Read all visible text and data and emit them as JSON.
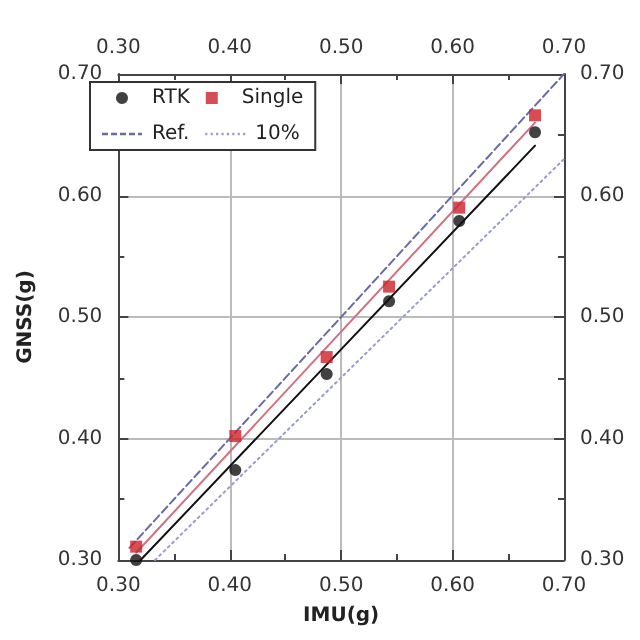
{
  "chart_data": {
    "type": "scatter",
    "xlabel": "IMU(g)",
    "ylabel": "GNSS(g)",
    "xlim": [
      0.3,
      0.7
    ],
    "ylim": [
      0.3,
      0.7
    ],
    "xticks": [
      {
        "value": 0.3,
        "label": "0.30"
      },
      {
        "value": 0.4,
        "label": "0.40"
      },
      {
        "value": 0.5,
        "label": "0.50"
      },
      {
        "value": 0.6,
        "label": "0.60"
      },
      {
        "value": 0.7,
        "label": "0.70"
      }
    ],
    "yticks": [
      {
        "value": 0.3,
        "label": "0.30"
      },
      {
        "value": 0.4,
        "label": "0.40"
      },
      {
        "value": 0.5,
        "label": "0.50"
      },
      {
        "value": 0.6,
        "label": "0.60"
      },
      {
        "value": 0.7,
        "label": "0.70"
      }
    ],
    "x2lim": [
      0.3,
      0.7
    ],
    "y2lim": [
      0.3,
      0.7
    ],
    "x2ticks": [
      {
        "value": 0.3,
        "label": "0.30"
      },
      {
        "value": 0.4,
        "label": "0.40"
      },
      {
        "value": 0.5,
        "label": "0.50"
      },
      {
        "value": 0.6,
        "label": "0.60"
      },
      {
        "value": 0.7,
        "label": "0.70"
      }
    ],
    "y2ticks": [
      {
        "value": 0.3,
        "label": "0.30"
      },
      {
        "value": 0.4,
        "label": "0.40"
      },
      {
        "value": 0.5,
        "label": "0.50"
      },
      {
        "value": 0.6,
        "label": "0.60"
      },
      {
        "value": 0.7,
        "label": "0.70"
      }
    ],
    "grid": true,
    "legend": "top left",
    "series": [
      {
        "name": "RTK",
        "marker": "circle",
        "color": "#111111",
        "x": [
          0.316,
          0.405,
          0.487,
          0.543,
          0.606,
          0.674
        ],
        "values": [
          0.3,
          0.374,
          0.453,
          0.513,
          0.579,
          0.652
        ]
      },
      {
        "name": "Single",
        "marker": "square",
        "color": "#cc2229",
        "x": [
          0.316,
          0.405,
          0.487,
          0.543,
          0.606,
          0.674
        ],
        "values": [
          0.311,
          0.402,
          0.467,
          0.525,
          0.59,
          0.666
        ]
      },
      {
        "name": "Ref.",
        "type": "line",
        "line_style": "dashed",
        "color": "#6a6aa8",
        "x": [
          0.31,
          0.7
        ],
        "values": [
          0.31,
          0.7
        ]
      },
      {
        "name": "10%",
        "type": "line",
        "line_style": "dotted",
        "color": "#9a9ad0",
        "x": [
          0.333,
          0.7
        ],
        "values": [
          0.3,
          0.63
        ]
      },
      {
        "type": "line",
        "line_style": "solid",
        "color": "#111111",
        "x": [
          0.32,
          0.674
        ],
        "values": [
          0.3,
          0.641
        ]
      },
      {
        "type": "line",
        "line_style": "solid",
        "color": "#d07080",
        "x": [
          0.316,
          0.674
        ],
        "values": [
          0.306,
          0.66
        ]
      }
    ]
  }
}
